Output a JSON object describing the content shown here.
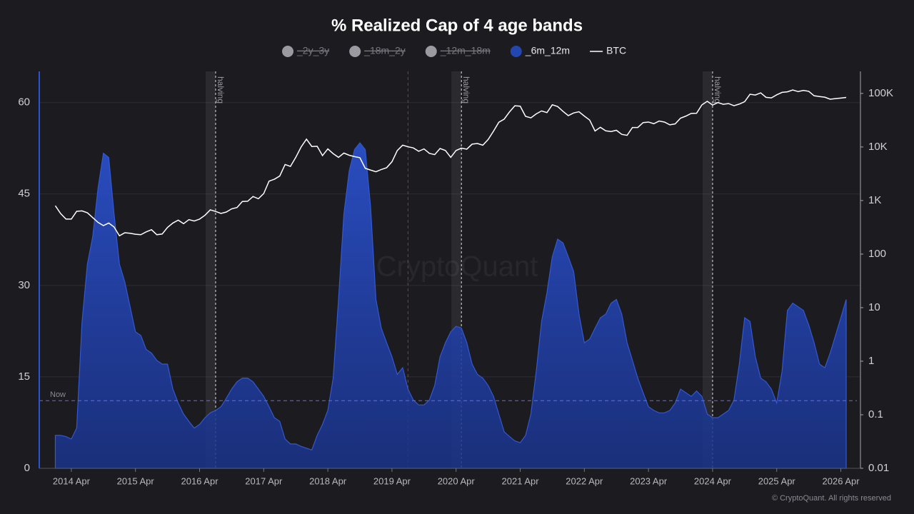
{
  "chart_data": {
    "type": "area",
    "title": "% Realized Cap of 4 age bands",
    "x": [
      "2014-01",
      "2014-02",
      "2014-03",
      "2014-04",
      "2014-05",
      "2014-06",
      "2014-07",
      "2014-08",
      "2014-09",
      "2014-10",
      "2014-11",
      "2014-12",
      "2015-01",
      "2015-02",
      "2015-03",
      "2015-04",
      "2015-05",
      "2015-06",
      "2015-07",
      "2015-08",
      "2015-09",
      "2015-10",
      "2015-11",
      "2015-12",
      "2016-01",
      "2016-02",
      "2016-03",
      "2016-04",
      "2016-05",
      "2016-06",
      "2016-07",
      "2016-08",
      "2016-09",
      "2016-10",
      "2016-11",
      "2016-12",
      "2017-01",
      "2017-02",
      "2017-03",
      "2017-04",
      "2017-05",
      "2017-06",
      "2017-07",
      "2017-08",
      "2017-09",
      "2017-10",
      "2017-11",
      "2017-12",
      "2018-01",
      "2018-02",
      "2018-03",
      "2018-04",
      "2018-05",
      "2018-06",
      "2018-07",
      "2018-08",
      "2018-09",
      "2018-10",
      "2018-11",
      "2018-12",
      "2019-01",
      "2019-02",
      "2019-03",
      "2019-04",
      "2019-05",
      "2019-06",
      "2019-07",
      "2019-08",
      "2019-09",
      "2019-10",
      "2019-11",
      "2019-12",
      "2020-01",
      "2020-02",
      "2020-03",
      "2020-04",
      "2020-05",
      "2020-06",
      "2020-07",
      "2020-08",
      "2020-09",
      "2020-10",
      "2020-11",
      "2020-12",
      "2021-01",
      "2021-02",
      "2021-03",
      "2021-04",
      "2021-05",
      "2021-06",
      "2021-07",
      "2021-08",
      "2021-09",
      "2021-10",
      "2021-11",
      "2021-12",
      "2022-01",
      "2022-02",
      "2022-03",
      "2022-04",
      "2022-05",
      "2022-06",
      "2022-07",
      "2022-08",
      "2022-09",
      "2022-10",
      "2022-11",
      "2022-12",
      "2023-01",
      "2023-02",
      "2023-03",
      "2023-04",
      "2023-05",
      "2023-06",
      "2023-07",
      "2023-08",
      "2023-09",
      "2023-10",
      "2023-11",
      "2023-12",
      "2024-01",
      "2024-02",
      "2024-03",
      "2024-04",
      "2024-05",
      "2024-06",
      "2024-07",
      "2024-08",
      "2024-09",
      "2024-10",
      "2024-11",
      "2024-12",
      "2025-01",
      "2025-02",
      "2025-03",
      "2025-04",
      "2025-05",
      "2025-06",
      "2025-07",
      "2025-08",
      "2025-09",
      "2025-10",
      "2025-11",
      "2025-12",
      "2026-01",
      "2026-02",
      "2026-03",
      "2026-04",
      "2026-05"
    ],
    "series": [
      {
        "name": "_2y_3y",
        "color": "#9a9aa0",
        "hidden": true
      },
      {
        "name": "_18m_2y",
        "color": "#9a9aa0",
        "hidden": true
      },
      {
        "name": "_12m_18m",
        "color": "#9a9aa0",
        "hidden": true
      },
      {
        "name": "_6m_12m",
        "color": "#2346b0",
        "values": [
          5.4,
          5.4,
          5.2,
          4.8,
          6.6,
          24,
          33.5,
          38,
          46,
          51.7,
          51,
          41.7,
          33.5,
          30.6,
          26.5,
          22.4,
          21.8,
          19.5,
          18.9,
          17.7,
          17.1,
          17.1,
          13,
          10.7,
          8.9,
          7.7,
          6.6,
          7.2,
          8.3,
          9.1,
          9.5,
          10.1,
          11.5,
          13,
          14.2,
          14.8,
          14.8,
          14.2,
          13,
          11.8,
          10.1,
          8.3,
          7.7,
          4.8,
          4,
          4,
          3.6,
          3.3,
          3,
          5.4,
          7.2,
          9.5,
          14.8,
          27.7,
          41.7,
          48.8,
          52.3,
          53.4,
          52.3,
          42.9,
          27.7,
          23,
          20.6,
          18.3,
          15.4,
          16.5,
          13,
          11.2,
          10.4,
          10.4,
          11.2,
          13.6,
          18.3,
          20.6,
          22.4,
          23.3,
          23,
          20.6,
          17.1,
          15.4,
          14.8,
          13.6,
          11.8,
          8.9,
          6,
          5.2,
          4.5,
          4.2,
          5.4,
          8.9,
          15.9,
          24.1,
          28.8,
          34.7,
          37.6,
          37,
          34.7,
          32.3,
          25.3,
          20.6,
          21.2,
          23,
          24.7,
          25.3,
          27.1,
          27.7,
          25.3,
          20.6,
          17.7,
          14.8,
          12.4,
          10.1,
          9.5,
          9.1,
          9.1,
          9.5,
          10.7,
          13,
          12.4,
          11.8,
          12.7,
          11.8,
          8.9,
          8.3,
          8.3,
          8.9,
          9.5,
          11.2,
          17.1,
          24.7,
          24.1,
          18.3,
          14.8,
          14.2,
          13,
          10.7,
          15.9,
          25.9,
          27.1,
          26.5,
          25.9,
          23.5,
          20.6,
          17.1,
          16.5,
          18.9,
          21.8,
          24.7,
          27.7
        ]
      },
      {
        "name": "BTC",
        "color": "#ffffff",
        "axis": "y2",
        "values": [
          800,
          570,
          450,
          450,
          630,
          640,
          590,
          480,
          390,
          340,
          380,
          320,
          220,
          250,
          245,
          235,
          230,
          260,
          285,
          230,
          237,
          315,
          380,
          430,
          370,
          440,
          415,
          450,
          530,
          670,
          625,
          575,
          610,
          700,
          740,
          960,
          970,
          1190,
          1080,
          1350,
          2300,
          2500,
          2870,
          4700,
          4340,
          6400,
          10000,
          14000,
          10200,
          10300,
          6900,
          9200,
          7500,
          6400,
          7700,
          7000,
          6600,
          6300,
          4000,
          3700,
          3450,
          3800,
          4100,
          5300,
          8600,
          10800,
          10100,
          9600,
          8300,
          9200,
          7600,
          7200,
          9350,
          8600,
          6400,
          8600,
          9500,
          9100,
          11300,
          11600,
          10800,
          13800,
          19700,
          29000,
          33100,
          45200,
          58800,
          57700,
          37300,
          35000,
          41500,
          47100,
          43800,
          61300,
          57000,
          46300,
          38500,
          43200,
          45500,
          37700,
          31800,
          19900,
          23300,
          20000,
          19400,
          20500,
          17200,
          16500,
          23100,
          23100,
          28500,
          29200,
          27200,
          30500,
          29200,
          25900,
          27000,
          34500,
          37700,
          42300,
          42600,
          61200,
          71300,
          60600,
          67500,
          62700,
          64600,
          59000,
          63300,
          70200,
          96400,
          93400,
          102400,
          84400,
          82500,
          94200,
          104600,
          107100,
          115800,
          108200,
          114000,
          109500,
          90400,
          87500,
          85000,
          78000,
          80000,
          82000,
          84000
        ]
      }
    ],
    "xlim": [
      "2013-10",
      "2026-07"
    ],
    "xticks": [
      {
        "value": "2014-04",
        "label": "2014 Apr"
      },
      {
        "value": "2015-04",
        "label": "2015 Apr"
      },
      {
        "value": "2016-04",
        "label": "2016 Apr"
      },
      {
        "value": "2017-04",
        "label": "2017 Apr"
      },
      {
        "value": "2018-04",
        "label": "2018 Apr"
      },
      {
        "value": "2019-04",
        "label": "2019 Apr"
      },
      {
        "value": "2020-04",
        "label": "2020 Apr"
      },
      {
        "value": "2021-04",
        "label": "2021 Apr"
      },
      {
        "value": "2022-04",
        "label": "2022 Apr"
      },
      {
        "value": "2023-04",
        "label": "2023 Apr"
      },
      {
        "value": "2024-04",
        "label": "2024 Apr"
      },
      {
        "value": "2025-04",
        "label": "2025 Apr"
      },
      {
        "value": "2026-04",
        "label": "2026 Apr"
      }
    ],
    "ylim": [
      0,
      65
    ],
    "yticks": [
      0,
      15,
      30,
      45,
      60
    ],
    "y2lim": [
      0.01,
      250000
    ],
    "y2_log": true,
    "y2ticks": [
      0.01,
      0.1,
      1,
      10,
      100,
      {
        "value": 1000,
        "label": "1K"
      },
      {
        "value": 10000,
        "label": "10K"
      },
      {
        "value": 100000,
        "label": "100K"
      }
    ],
    "grid": true,
    "halvings": [
      {
        "x": "2016-07",
        "label": "halving"
      },
      {
        "x": "2020-05",
        "label": "halving"
      },
      {
        "x": "2024-04",
        "label": "halving"
      }
    ],
    "highlight_x": "2019-07",
    "now_line": {
      "value": 11.1,
      "label": "Now"
    },
    "watermark": "CryptoQuant",
    "footer": "© CryptoQuant. All rights reserved"
  }
}
